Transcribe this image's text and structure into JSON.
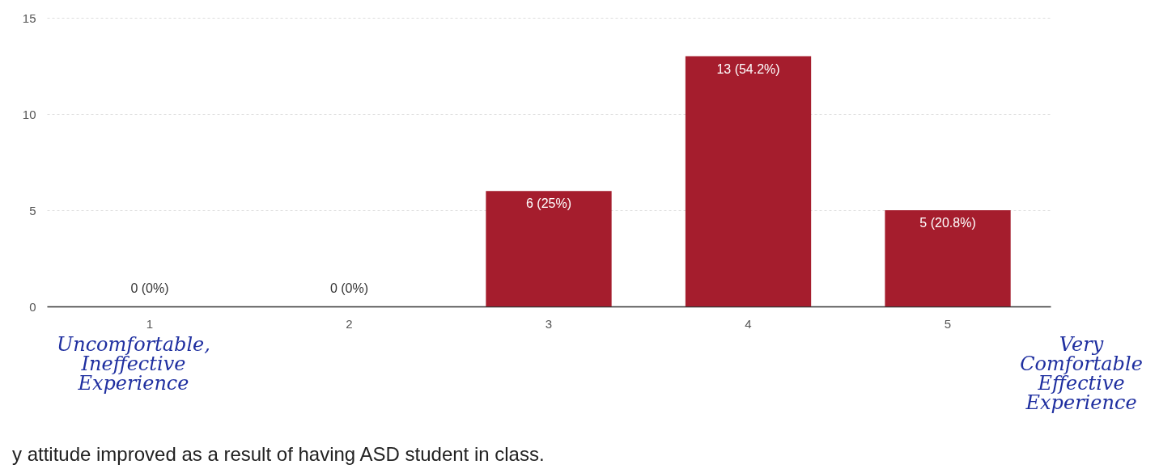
{
  "chart_data": {
    "type": "bar",
    "title": "y attitude improved as a result of having ASD student in class.",
    "categories": [
      "1",
      "2",
      "3",
      "4",
      "5"
    ],
    "values": [
      0,
      0,
      6,
      13,
      5
    ],
    "value_labels": [
      "0 (0%)",
      "0 (0%)",
      "6 (25%)",
      "13 (54.2%)",
      "5 (20.8%)"
    ],
    "color": "#a51d2d",
    "ylim": [
      0,
      15
    ],
    "yticks": [
      0,
      5,
      10,
      15
    ],
    "grid": "y",
    "annotations": [
      "Uncomfortable, Ineffective Experience",
      "Very Comfortable Effective Experience"
    ]
  }
}
